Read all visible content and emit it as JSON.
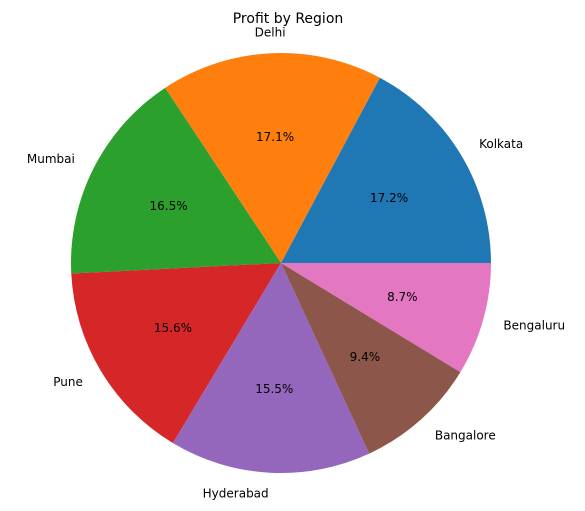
{
  "chart_data": {
    "type": "pie",
    "title": "Profit by Region",
    "categories": [
      "Kolkata",
      "Delhi",
      "Mumbai",
      "Pune",
      "Hyderabad",
      "Bangalore",
      "Bengaluru"
    ],
    "values": [
      17.2,
      17.1,
      16.5,
      15.6,
      15.5,
      9.4,
      8.7
    ],
    "value_labels": [
      "17.2%",
      "17.1%",
      "16.5%",
      "15.6%",
      "15.5%",
      "9.4%",
      "8.7%"
    ],
    "colors": [
      "#1f77b4",
      "#ff7f0e",
      "#2ca02c",
      "#d62728",
      "#9467bd",
      "#8c564b",
      "#e377c2"
    ],
    "start_angle_deg": 0,
    "direction": "counterclockwise",
    "legend": "none"
  }
}
